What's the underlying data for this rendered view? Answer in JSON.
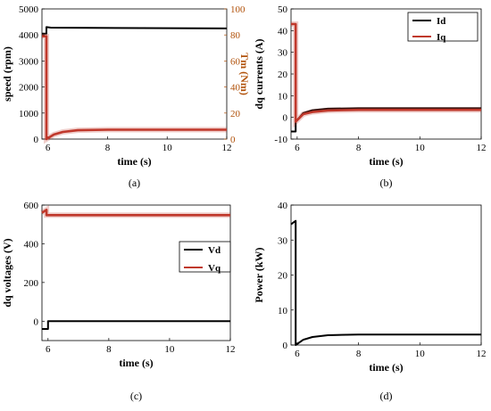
{
  "chart_data": [
    {
      "type": "line",
      "caption": "(a)",
      "xlabel": "time (s)",
      "ylabel": "speed (rpm)",
      "ylabel_right": "Tm (Nm)",
      "xlim": [
        5.8,
        12
      ],
      "ylim": [
        0,
        5000
      ],
      "ylim_right": [
        0,
        100
      ],
      "xticks": [
        6,
        8,
        10,
        12
      ],
      "yticks": [
        0,
        1000,
        2000,
        3000,
        4000,
        5000
      ],
      "yticks_right": [
        0,
        20,
        40,
        60,
        80,
        100
      ],
      "grid": false,
      "series": [
        {
          "name": "",
          "axis": "left",
          "color": "#000000",
          "x": [
            5.8,
            5.95,
            5.95,
            6.1,
            12
          ],
          "y": [
            4050,
            4050,
            4300,
            4280,
            4250
          ]
        },
        {
          "name": "",
          "axis": "right",
          "color": "#c0392b",
          "x": [
            5.8,
            5.95,
            5.95,
            6.2,
            6.5,
            7,
            8,
            12
          ],
          "y": [
            79,
            79,
            0,
            3.5,
            5.5,
            6.8,
            7.2,
            7.2
          ]
        }
      ]
    },
    {
      "type": "line",
      "caption": "(b)",
      "xlabel": "time (s)",
      "ylabel": "dq currents (A)",
      "xlim": [
        5.8,
        12
      ],
      "ylim": [
        -10,
        50
      ],
      "xticks": [
        6,
        8,
        10,
        12
      ],
      "yticks": [
        -10,
        0,
        10,
        20,
        30,
        40,
        50
      ],
      "grid": false,
      "legend_position": "top-right",
      "series": [
        {
          "name": "Id",
          "color": "#000000",
          "x": [
            5.8,
            5.95,
            5.95,
            6.2,
            6.5,
            7,
            8,
            12
          ],
          "y": [
            -6.5,
            -6.5,
            -2,
            2,
            3.3,
            4,
            4.2,
            4.2
          ]
        },
        {
          "name": "Iq",
          "color": "#c0392b",
          "x": [
            5.8,
            5.95,
            5.95,
            6.2,
            6.5,
            7,
            8,
            12
          ],
          "y": [
            43,
            43,
            -2,
            1.5,
            2.5,
            3.2,
            3.5,
            3.5
          ]
        }
      ]
    },
    {
      "type": "line",
      "caption": "(c)",
      "xlabel": "time (s)",
      "ylabel": "dq voltages (V)",
      "xlim": [
        5.8,
        12
      ],
      "ylim": [
        -100,
        600
      ],
      "xticks": [
        6,
        8,
        10,
        12
      ],
      "yticks": [
        0,
        200,
        400,
        600
      ],
      "grid": false,
      "legend_position": "right",
      "series": [
        {
          "name": "Vd",
          "color": "#000000",
          "x": [
            5.8,
            6.0,
            6.0,
            12
          ],
          "y": [
            -40,
            -40,
            0,
            0
          ]
        },
        {
          "name": "Vq",
          "color": "#c0392b",
          "x": [
            5.8,
            5.95,
            5.95,
            12
          ],
          "y": [
            560,
            575,
            548,
            548
          ]
        }
      ]
    },
    {
      "type": "line",
      "caption": "(d)",
      "xlabel": "time (s)",
      "ylabel": "Power (kW)",
      "xlim": [
        5.8,
        12
      ],
      "ylim": [
        0,
        40
      ],
      "xticks": [
        6,
        8,
        10,
        12
      ],
      "yticks": [
        0,
        10,
        20,
        30,
        40
      ],
      "grid": false,
      "series": [
        {
          "name": "",
          "color": "#000000",
          "x": [
            5.8,
            5.95,
            5.95,
            6.2,
            6.5,
            7,
            8,
            12
          ],
          "y": [
            34.5,
            35.5,
            0,
            1.5,
            2.3,
            2.8,
            3,
            3
          ]
        }
      ]
    }
  ]
}
